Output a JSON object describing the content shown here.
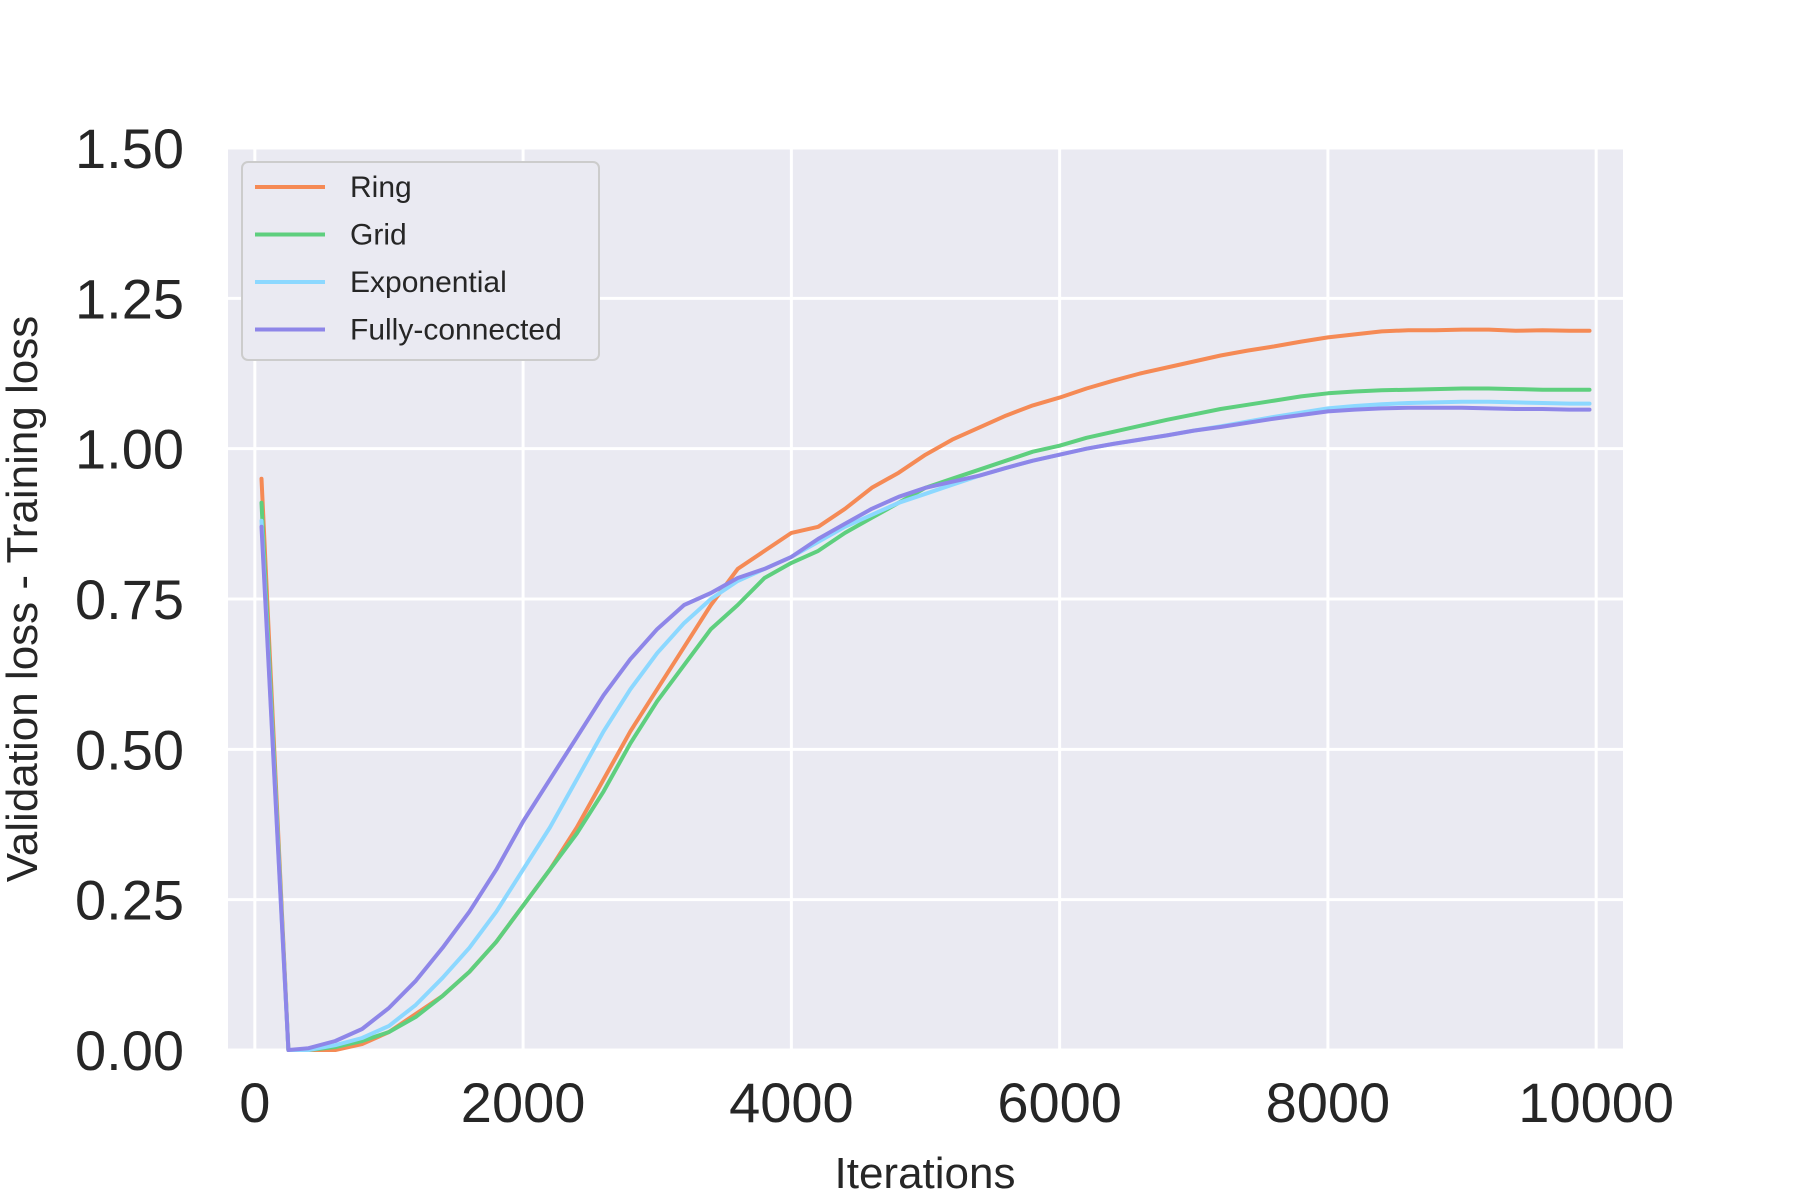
{
  "chart_data": {
    "type": "line",
    "title": "",
    "xlabel": "Iterations",
    "ylabel": "Validation loss - Training loss",
    "xlim": [
      -200,
      10200
    ],
    "ylim": [
      0,
      1.5
    ],
    "xticks": [
      0,
      2000,
      4000,
      6000,
      8000,
      10000
    ],
    "xtick_labels": [
      "0",
      "2000",
      "4000",
      "6000",
      "8000",
      "10000"
    ],
    "yticks": [
      0,
      0.25,
      0.5,
      0.75,
      1.0,
      1.25,
      1.5
    ],
    "ytick_labels": [
      "0.00",
      "0.25",
      "0.50",
      "0.75",
      "1.00",
      "1.25",
      "1.50"
    ],
    "grid": true,
    "legend_position": "top-left",
    "series": [
      {
        "name": "Ring",
        "color": "#f58a55",
        "points": [
          [
            50,
            0.95
          ],
          [
            250,
            0.0
          ],
          [
            400,
            0.0
          ],
          [
            600,
            0.0
          ],
          [
            800,
            0.01
          ],
          [
            1000,
            0.03
          ],
          [
            1200,
            0.06
          ],
          [
            1400,
            0.09
          ],
          [
            1600,
            0.13
          ],
          [
            1800,
            0.18
          ],
          [
            2000,
            0.24
          ],
          [
            2200,
            0.3
          ],
          [
            2400,
            0.37
          ],
          [
            2600,
            0.45
          ],
          [
            2800,
            0.53
          ],
          [
            3000,
            0.6
          ],
          [
            3200,
            0.67
          ],
          [
            3400,
            0.74
          ],
          [
            3600,
            0.8
          ],
          [
            3800,
            0.83
          ],
          [
            4000,
            0.86
          ],
          [
            4200,
            0.87
          ],
          [
            4400,
            0.9
          ],
          [
            4600,
            0.935
          ],
          [
            4800,
            0.96
          ],
          [
            5000,
            0.99
          ],
          [
            5200,
            1.015
          ],
          [
            5400,
            1.035
          ],
          [
            5600,
            1.055
          ],
          [
            5800,
            1.072
          ],
          [
            6000,
            1.085
          ],
          [
            6200,
            1.1
          ],
          [
            6400,
            1.113
          ],
          [
            6600,
            1.125
          ],
          [
            6800,
            1.135
          ],
          [
            7000,
            1.145
          ],
          [
            7200,
            1.155
          ],
          [
            7400,
            1.163
          ],
          [
            7600,
            1.17
          ],
          [
            7800,
            1.178
          ],
          [
            8000,
            1.185
          ],
          [
            8200,
            1.19
          ],
          [
            8400,
            1.195
          ],
          [
            8600,
            1.197
          ],
          [
            8800,
            1.197
          ],
          [
            9000,
            1.198
          ],
          [
            9200,
            1.198
          ],
          [
            9400,
            1.196
          ],
          [
            9600,
            1.197
          ],
          [
            9800,
            1.196
          ],
          [
            9950,
            1.196
          ]
        ]
      },
      {
        "name": "Grid",
        "color": "#5ecf7e",
        "points": [
          [
            50,
            0.91
          ],
          [
            250,
            0.0
          ],
          [
            400,
            0.0
          ],
          [
            600,
            0.005
          ],
          [
            800,
            0.015
          ],
          [
            1000,
            0.03
          ],
          [
            1200,
            0.055
          ],
          [
            1400,
            0.09
          ],
          [
            1600,
            0.13
          ],
          [
            1800,
            0.18
          ],
          [
            2000,
            0.24
          ],
          [
            2200,
            0.3
          ],
          [
            2400,
            0.36
          ],
          [
            2600,
            0.43
          ],
          [
            2800,
            0.51
          ],
          [
            3000,
            0.58
          ],
          [
            3200,
            0.64
          ],
          [
            3400,
            0.7
          ],
          [
            3600,
            0.74
          ],
          [
            3800,
            0.785
          ],
          [
            4000,
            0.81
          ],
          [
            4200,
            0.83
          ],
          [
            4400,
            0.86
          ],
          [
            4600,
            0.885
          ],
          [
            4800,
            0.91
          ],
          [
            5000,
            0.935
          ],
          [
            5200,
            0.95
          ],
          [
            5400,
            0.965
          ],
          [
            5600,
            0.98
          ],
          [
            5800,
            0.995
          ],
          [
            6000,
            1.005
          ],
          [
            6200,
            1.018
          ],
          [
            6400,
            1.028
          ],
          [
            6600,
            1.038
          ],
          [
            6800,
            1.048
          ],
          [
            7000,
            1.057
          ],
          [
            7200,
            1.066
          ],
          [
            7400,
            1.073
          ],
          [
            7600,
            1.08
          ],
          [
            7800,
            1.087
          ],
          [
            8000,
            1.092
          ],
          [
            8200,
            1.095
          ],
          [
            8400,
            1.097
          ],
          [
            8600,
            1.098
          ],
          [
            8800,
            1.099
          ],
          [
            9000,
            1.1
          ],
          [
            9200,
            1.1
          ],
          [
            9400,
            1.099
          ],
          [
            9600,
            1.098
          ],
          [
            9800,
            1.098
          ],
          [
            9950,
            1.098
          ]
        ]
      },
      {
        "name": "Exponential",
        "color": "#8cd8ff",
        "points": [
          [
            50,
            0.88
          ],
          [
            250,
            0.0
          ],
          [
            400,
            0.0
          ],
          [
            600,
            0.008
          ],
          [
            800,
            0.02
          ],
          [
            1000,
            0.04
          ],
          [
            1200,
            0.075
          ],
          [
            1400,
            0.12
          ],
          [
            1600,
            0.17
          ],
          [
            1800,
            0.23
          ],
          [
            2000,
            0.3
          ],
          [
            2200,
            0.37
          ],
          [
            2400,
            0.45
          ],
          [
            2600,
            0.53
          ],
          [
            2800,
            0.6
          ],
          [
            3000,
            0.66
          ],
          [
            3200,
            0.71
          ],
          [
            3400,
            0.75
          ],
          [
            3600,
            0.78
          ],
          [
            3800,
            0.8
          ],
          [
            4000,
            0.82
          ],
          [
            4200,
            0.845
          ],
          [
            4400,
            0.87
          ],
          [
            4600,
            0.89
          ],
          [
            4800,
            0.91
          ],
          [
            5000,
            0.925
          ],
          [
            5200,
            0.94
          ],
          [
            5400,
            0.955
          ],
          [
            5600,
            0.968
          ],
          [
            5800,
            0.98
          ],
          [
            6000,
            0.99
          ],
          [
            6200,
            1.0
          ],
          [
            6400,
            1.008
          ],
          [
            6600,
            1.015
          ],
          [
            6800,
            1.022
          ],
          [
            7000,
            1.03
          ],
          [
            7200,
            1.037
          ],
          [
            7400,
            1.045
          ],
          [
            7600,
            1.053
          ],
          [
            7800,
            1.06
          ],
          [
            8000,
            1.067
          ],
          [
            8200,
            1.071
          ],
          [
            8400,
            1.074
          ],
          [
            8600,
            1.076
          ],
          [
            8800,
            1.077
          ],
          [
            9000,
            1.078
          ],
          [
            9200,
            1.078
          ],
          [
            9400,
            1.077
          ],
          [
            9600,
            1.076
          ],
          [
            9800,
            1.075
          ],
          [
            9950,
            1.075
          ]
        ]
      },
      {
        "name": "Fully-connected",
        "color": "#8e86e8",
        "points": [
          [
            50,
            0.87
          ],
          [
            250,
            0.0
          ],
          [
            400,
            0.003
          ],
          [
            600,
            0.015
          ],
          [
            800,
            0.035
          ],
          [
            1000,
            0.07
          ],
          [
            1200,
            0.115
          ],
          [
            1400,
            0.17
          ],
          [
            1600,
            0.23
          ],
          [
            1800,
            0.3
          ],
          [
            2000,
            0.38
          ],
          [
            2200,
            0.45
          ],
          [
            2400,
            0.52
          ],
          [
            2600,
            0.59
          ],
          [
            2800,
            0.65
          ],
          [
            3000,
            0.7
          ],
          [
            3200,
            0.74
          ],
          [
            3400,
            0.76
          ],
          [
            3600,
            0.785
          ],
          [
            3800,
            0.8
          ],
          [
            4000,
            0.82
          ],
          [
            4200,
            0.85
          ],
          [
            4400,
            0.875
          ],
          [
            4600,
            0.9
          ],
          [
            4800,
            0.92
          ],
          [
            5000,
            0.935
          ],
          [
            5200,
            0.945
          ],
          [
            5400,
            0.955
          ],
          [
            5600,
            0.968
          ],
          [
            5800,
            0.98
          ],
          [
            6000,
            0.99
          ],
          [
            6200,
            1.0
          ],
          [
            6400,
            1.008
          ],
          [
            6600,
            1.015
          ],
          [
            6800,
            1.022
          ],
          [
            7000,
            1.03
          ],
          [
            7200,
            1.036
          ],
          [
            7400,
            1.043
          ],
          [
            7600,
            1.05
          ],
          [
            7800,
            1.056
          ],
          [
            8000,
            1.062
          ],
          [
            8200,
            1.065
          ],
          [
            8400,
            1.067
          ],
          [
            8600,
            1.068
          ],
          [
            8800,
            1.068
          ],
          [
            9000,
            1.068
          ],
          [
            9200,
            1.067
          ],
          [
            9400,
            1.066
          ],
          [
            9600,
            1.066
          ],
          [
            9800,
            1.065
          ],
          [
            9950,
            1.065
          ]
        ]
      }
    ]
  }
}
